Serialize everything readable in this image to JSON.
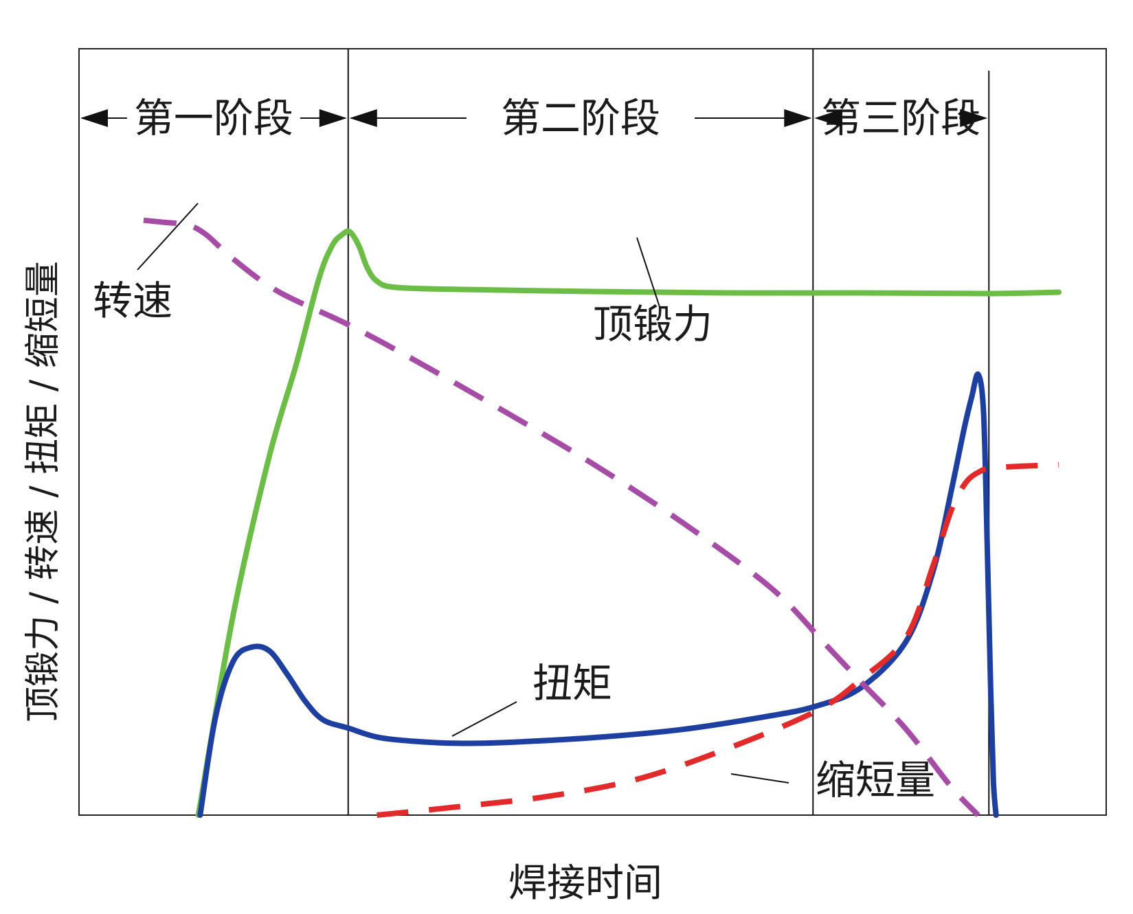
{
  "chart_data": {
    "type": "line",
    "xlabel": "焊接时间",
    "ylabel": "顶锻力 / 转速 / 扭矩 / 缩短量",
    "x_range": [
      0,
      100
    ],
    "y_range": [
      0,
      100
    ],
    "axis_ticks": false,
    "grid": false,
    "stages": [
      {
        "name": "第一阶段",
        "start": 0,
        "end": 22.8
      },
      {
        "name": "第二阶段",
        "start": 22.8,
        "end": 74.6
      },
      {
        "name": "第三阶段",
        "start": 74.6,
        "end": 94.2
      }
    ],
    "series": [
      {
        "name": "转速",
        "color": "#a64ca6",
        "style": "dashed",
        "points": [
          [
            0,
            86.1
          ],
          [
            2.4,
            85.8
          ],
          [
            5,
            85.4
          ],
          [
            7,
            84
          ],
          [
            9.9,
            80.6
          ],
          [
            15,
            75.8
          ],
          [
            22.8,
            71
          ],
          [
            30,
            66
          ],
          [
            40,
            58.6
          ],
          [
            50,
            50.9
          ],
          [
            60,
            42.4
          ],
          [
            70,
            32.8
          ],
          [
            76,
            24.7
          ],
          [
            80,
            19.2
          ],
          [
            85,
            12.4
          ],
          [
            90,
            4.1
          ],
          [
            93,
            0
          ]
        ]
      },
      {
        "name": "顶锻力",
        "color": "#6cbd45",
        "style": "solid",
        "points": [
          [
            6.1,
            0
          ],
          [
            10,
            29.1
          ],
          [
            14,
            51.9
          ],
          [
            17,
            65.2
          ],
          [
            19.5,
            77.5
          ],
          [
            21,
            82.4
          ],
          [
            22.2,
            84.1
          ],
          [
            23,
            84.4
          ],
          [
            24,
            82.4
          ],
          [
            24.9,
            79.3
          ],
          [
            26,
            77.3
          ],
          [
            28,
            76.4
          ],
          [
            35,
            76.1
          ],
          [
            50,
            75.8
          ],
          [
            65,
            75.6
          ],
          [
            80,
            75.6
          ],
          [
            94,
            75.5
          ],
          [
            102,
            75.7
          ]
        ]
      },
      {
        "name": "扭矩",
        "color": "#1d3fa0",
        "style": "solid",
        "points": [
          [
            6.3,
            0
          ],
          [
            8,
            14.1
          ],
          [
            10,
            22.3
          ],
          [
            12,
            24.3
          ],
          [
            14,
            23.8
          ],
          [
            16,
            20.4
          ],
          [
            18,
            16.5
          ],
          [
            20,
            13.8
          ],
          [
            22.8,
            12.6
          ],
          [
            26,
            11.3
          ],
          [
            30,
            10.7
          ],
          [
            35,
            10.4
          ],
          [
            40,
            10.5
          ],
          [
            50,
            11.2
          ],
          [
            60,
            12.4
          ],
          [
            70,
            14.4
          ],
          [
            75,
            15.8
          ],
          [
            80,
            18.5
          ],
          [
            85,
            25.2
          ],
          [
            88,
            35.4
          ],
          [
            90,
            46.9
          ],
          [
            91.5,
            56.3
          ],
          [
            92.3,
            60.6
          ],
          [
            93,
            63.8
          ],
          [
            93.6,
            58.5
          ],
          [
            94,
            40
          ],
          [
            94.4,
            18
          ],
          [
            94.7,
            5
          ],
          [
            95,
            0
          ]
        ]
      },
      {
        "name": "缩短量",
        "color": "#e32a2a",
        "style": "dashed",
        "points": [
          [
            26,
            0
          ],
          [
            35,
            1.2
          ],
          [
            45,
            2.7
          ],
          [
            55,
            5.2
          ],
          [
            65,
            9.6
          ],
          [
            75,
            15.1
          ],
          [
            80,
            19.7
          ],
          [
            85,
            25.8
          ],
          [
            88,
            36.2
          ],
          [
            90,
            44.1
          ],
          [
            91.5,
            47.9
          ],
          [
            93,
            49.6
          ],
          [
            95,
            50.3
          ],
          [
            102,
            50.7
          ]
        ]
      }
    ],
    "annotations": [
      {
        "text": "转速",
        "series": "转速"
      },
      {
        "text": "顶锻力",
        "series": "顶锻力"
      },
      {
        "text": "扭矩",
        "series": "扭矩"
      },
      {
        "text": "缩短量",
        "series": "缩短量"
      }
    ]
  }
}
